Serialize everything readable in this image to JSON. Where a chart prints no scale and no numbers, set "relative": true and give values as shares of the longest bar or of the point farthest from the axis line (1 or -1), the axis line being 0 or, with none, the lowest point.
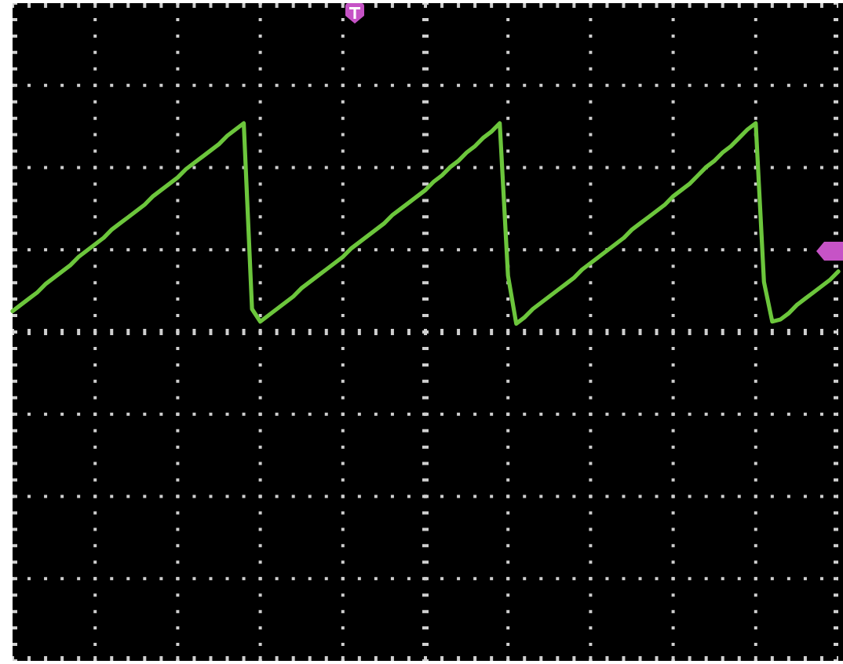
{
  "chart_data": {
    "type": "line",
    "relative": true,
    "grid": true,
    "color": "#6cc63c",
    "categories": [
      null,
      null,
      null,
      null,
      null,
      null,
      null,
      null,
      null,
      null,
      null,
      null,
      null,
      null,
      null,
      null,
      null,
      null,
      null,
      null,
      null,
      null,
      null,
      null,
      null,
      null,
      null,
      null,
      null,
      null,
      null,
      null,
      null,
      null,
      null,
      null,
      null,
      null,
      null,
      null,
      null,
      null,
      null,
      null,
      null,
      null,
      null,
      null,
      null,
      null,
      null,
      null,
      null,
      null,
      null,
      null,
      null,
      null,
      null,
      null,
      null,
      null,
      null,
      null,
      null,
      null,
      null,
      null,
      null,
      null,
      null,
      null,
      null,
      null,
      null,
      null,
      null,
      null,
      null,
      null,
      null,
      null,
      null,
      null,
      null,
      null,
      null,
      null,
      null,
      null,
      null,
      null,
      null,
      null,
      null,
      null,
      null,
      null,
      null,
      null,
      null
    ],
    "values": [
      0.1,
      0.13,
      0.16,
      0.19,
      0.23,
      0.26,
      0.29,
      0.32,
      0.36,
      0.39,
      0.42,
      0.45,
      0.49,
      0.52,
      0.55,
      0.58,
      0.61,
      0.65,
      0.68,
      0.71,
      0.74,
      0.78,
      0.81,
      0.84,
      0.87,
      0.9,
      0.94,
      0.97,
      1.0,
      0.11,
      0.05,
      0.08,
      0.11,
      0.14,
      0.17,
      0.21,
      0.24,
      0.27,
      0.3,
      0.33,
      0.36,
      0.4,
      0.43,
      0.46,
      0.49,
      0.52,
      0.56,
      0.59,
      0.62,
      0.65,
      0.68,
      0.72,
      0.75,
      0.79,
      0.82,
      0.86,
      0.89,
      0.93,
      0.96,
      1.0,
      0.27,
      0.04,
      0.07,
      0.11,
      0.14,
      0.17,
      0.2,
      0.23,
      0.26,
      0.3,
      0.33,
      0.36,
      0.39,
      0.42,
      0.45,
      0.49,
      0.52,
      0.55,
      0.58,
      0.61,
      0.65,
      0.68,
      0.71,
      0.75,
      0.79,
      0.82,
      0.86,
      0.89,
      0.93,
      0.97,
      1.0,
      0.24,
      0.05,
      0.06,
      0.09,
      0.13,
      0.16,
      0.19,
      0.22,
      0.25,
      0.29
    ]
  }
}
